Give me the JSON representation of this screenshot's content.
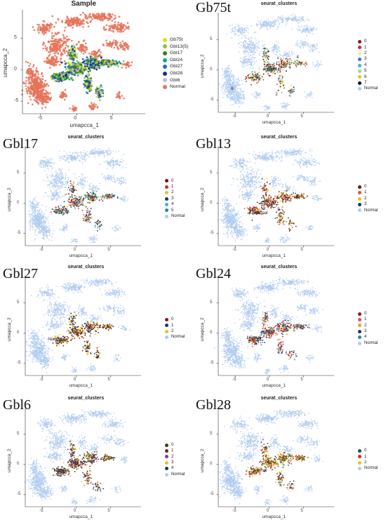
{
  "figure": {
    "panels": [
      {
        "id": "sample",
        "title": "",
        "subtitle": "Sample",
        "big": true
      },
      {
        "id": "gb75t",
        "title": "Gb75t",
        "subtitle": "seurat_clusters"
      },
      {
        "id": "gbl17",
        "title": "Gbl17",
        "subtitle": "seurat_clusters"
      },
      {
        "id": "gbl13",
        "title": "Gbl13",
        "subtitle": "seurat_clusters"
      },
      {
        "id": "gbl27",
        "title": "Gbl27",
        "subtitle": "seurat_clusters"
      },
      {
        "id": "gbl24",
        "title": "Gbl24",
        "subtitle": "seurat_clusters"
      },
      {
        "id": "gbl6",
        "title": "Gbl6",
        "subtitle": "seurat_clusters"
      },
      {
        "id": "gbl28",
        "title": "Gbl28",
        "subtitle": "seurat_clusters"
      }
    ]
  },
  "chart_data": [
    {
      "type": "scatter",
      "panel": "sample",
      "title": "Sample",
      "xlabel": "umapcca_1",
      "ylabel": "umapcca_2",
      "xlim": [
        -7.5,
        9.5
      ],
      "ylim": [
        -7,
        9.5
      ],
      "xticks": [
        -5,
        0,
        5
      ],
      "yticks": [
        -5,
        0,
        5
      ],
      "legend": {
        "position": "right",
        "entries": [
          {
            "name": "Gb75t",
            "color": "#d9e021"
          },
          {
            "name": "Gbl13(5)",
            "color": "#8dc63f"
          },
          {
            "name": "Gbl17",
            "color": "#3a7d1e"
          },
          {
            "name": "Gbl24",
            "color": "#1ea37f"
          },
          {
            "name": "Gbl27",
            "color": "#2b6cb0"
          },
          {
            "name": "Gbl28",
            "color": "#1a2e8c"
          },
          {
            "name": "Gbl6",
            "color": "#c7b4e6"
          },
          {
            "name": "Normal",
            "color": "#e8735a"
          }
        ]
      },
      "annotations": []
    },
    {
      "type": "scatter",
      "panel": "gb75t",
      "title": "seurat_clusters",
      "xlabel": "umapcca_1",
      "ylabel": "umapcca_2",
      "xlim": [
        -7.5,
        9.5
      ],
      "ylim": [
        -7,
        9.5
      ],
      "xticks": [
        -5,
        0,
        5
      ],
      "yticks": [
        -5,
        0,
        5
      ],
      "legend": {
        "position": "right",
        "entries": [
          {
            "name": "0",
            "color": "#8b1a1a"
          },
          {
            "name": "1",
            "color": "#d62728"
          },
          {
            "name": "2",
            "color": "#f3e9a0"
          },
          {
            "name": "3",
            "color": "#2c7fb8"
          },
          {
            "name": "4",
            "color": "#41b6c4"
          },
          {
            "name": "5",
            "color": "#a3d977"
          },
          {
            "name": "6",
            "color": "#e6c229"
          },
          {
            "name": "7",
            "color": "#111111"
          },
          {
            "name": "Normal",
            "color": "#aecbf0"
          }
        ]
      },
      "annotations": [
        {
          "text": "Normal",
          "x": 0.3,
          "y": -0.1
        },
        {
          "text": "6",
          "x": -5,
          "y": -3.3
        },
        {
          "text": "4",
          "x": 4.6,
          "y": 1.9
        },
        {
          "text": "2",
          "x": 1.5,
          "y": -4.2
        }
      ]
    },
    {
      "type": "scatter",
      "panel": "gbl17",
      "title": "seurat_clusters",
      "xlabel": "umapcca_1",
      "ylabel": "umapcca_2",
      "xlim": [
        -7.5,
        9.5
      ],
      "ylim": [
        -7,
        9.5
      ],
      "xticks": [
        -5,
        0,
        5
      ],
      "yticks": [
        -5,
        0,
        5
      ],
      "legend": {
        "position": "right",
        "entries": [
          {
            "name": "0",
            "color": "#5a1a1a"
          },
          {
            "name": "1",
            "color": "#d62728"
          },
          {
            "name": "2",
            "color": "#e6c229"
          },
          {
            "name": "3",
            "color": "#1a3a5a"
          },
          {
            "name": "4",
            "color": "#41b6c4"
          },
          {
            "name": "5",
            "color": "#2c7fb8"
          },
          {
            "name": "Normal",
            "color": "#aecbf0"
          }
        ]
      },
      "annotations": []
    },
    {
      "type": "scatter",
      "panel": "gbl13",
      "title": "seurat_clusters",
      "xlabel": "umapcca_1",
      "ylabel": "umapcca_2",
      "xlim": [
        -7.5,
        9.5
      ],
      "ylim": [
        -7,
        9.5
      ],
      "xticks": [
        -5,
        0,
        5
      ],
      "yticks": [
        -5,
        0,
        5
      ],
      "legend": {
        "position": "right",
        "entries": [
          {
            "name": "0",
            "color": "#6b1a1a"
          },
          {
            "name": "1",
            "color": "#e05050"
          },
          {
            "name": "2",
            "color": "#e6c229"
          },
          {
            "name": "3",
            "color": "#1a3a5a"
          },
          {
            "name": "Normal",
            "color": "#aecbf0"
          }
        ]
      },
      "annotations": [
        {
          "text": "Normal",
          "x": -1.6,
          "y": -1.8
        },
        {
          "text": "3",
          "x": 1.8,
          "y": -1.2
        }
      ]
    },
    {
      "type": "scatter",
      "panel": "gbl27",
      "title": "seurat_clusters",
      "xlabel": "umapcca_1",
      "ylabel": "umapcca_2",
      "xlim": [
        -7.5,
        9.5
      ],
      "ylim": [
        -7,
        9.5
      ],
      "xticks": [
        -5,
        0,
        5
      ],
      "yticks": [
        -5,
        0,
        5
      ],
      "legend": {
        "position": "right",
        "entries": [
          {
            "name": "0",
            "color": "#8b1a1a"
          },
          {
            "name": "1",
            "color": "#1a3a5a"
          },
          {
            "name": "2",
            "color": "#e6c229"
          },
          {
            "name": "Normal",
            "color": "#aecbf0"
          }
        ]
      },
      "annotations": [
        {
          "text": "Normal",
          "x": -3.5,
          "y": -1.2
        }
      ]
    },
    {
      "type": "scatter",
      "panel": "gbl24",
      "title": "seurat_clusters",
      "xlabel": "umapcca_1",
      "ylabel": "umapcca_2",
      "xlim": [
        -7.5,
        9.5
      ],
      "ylim": [
        -7,
        9.5
      ],
      "xticks": [
        -5,
        0,
        5
      ],
      "yticks": [
        -5,
        0,
        5
      ],
      "legend": {
        "position": "right",
        "entries": [
          {
            "name": "0",
            "color": "#8b1a1a"
          },
          {
            "name": "1",
            "color": "#e05050"
          },
          {
            "name": "2",
            "color": "#e6a229"
          },
          {
            "name": "3",
            "color": "#1a3a5a"
          },
          {
            "name": "4",
            "color": "#2c7fb8"
          },
          {
            "name": "Normal",
            "color": "#aecbf0"
          }
        ]
      },
      "annotations": [
        {
          "text": "Normal",
          "x": -2.7,
          "y": -1
        }
      ]
    },
    {
      "type": "scatter",
      "panel": "gbl6",
      "title": "seurat_clusters",
      "xlabel": "umapcca_1",
      "ylabel": "umapcca_2",
      "xlim": [
        -7.5,
        9.5
      ],
      "ylim": [
        -7,
        9.5
      ],
      "xticks": [
        -5,
        0,
        5
      ],
      "yticks": [
        -5,
        0,
        5
      ],
      "legend": {
        "position": "right",
        "entries": [
          {
            "name": "0",
            "color": "#3a3a1a"
          },
          {
            "name": "1",
            "color": "#8b1a1a"
          },
          {
            "name": "2",
            "color": "#7b3fa0"
          },
          {
            "name": "3",
            "color": "#e6c229"
          },
          {
            "name": "4",
            "color": "#1a3a5a"
          },
          {
            "name": "Normal",
            "color": "#aecbf0"
          }
        ]
      },
      "annotations": [
        {
          "text": "Normal",
          "x": -2.7,
          "y": -1.2
        }
      ]
    },
    {
      "type": "scatter",
      "panel": "gbl28",
      "title": "seurat_clusters",
      "xlabel": "umapcca_1",
      "ylabel": "umapcca_2",
      "xlim": [
        -7.5,
        9.5
      ],
      "ylim": [
        -7,
        9.5
      ],
      "xticks": [
        -5,
        0,
        5
      ],
      "yticks": [
        -5,
        0,
        5
      ],
      "legend": {
        "position": "right",
        "entries": [
          {
            "name": "0",
            "color": "#1a5a3a"
          },
          {
            "name": "1",
            "color": "#d62728"
          },
          {
            "name": "2",
            "color": "#e6c229"
          },
          {
            "name": "Normal",
            "color": "#aecbf0"
          }
        ]
      },
      "annotations": [
        {
          "text": "Normal",
          "x": -1.7,
          "y": -1.2
        }
      ]
    }
  ]
}
